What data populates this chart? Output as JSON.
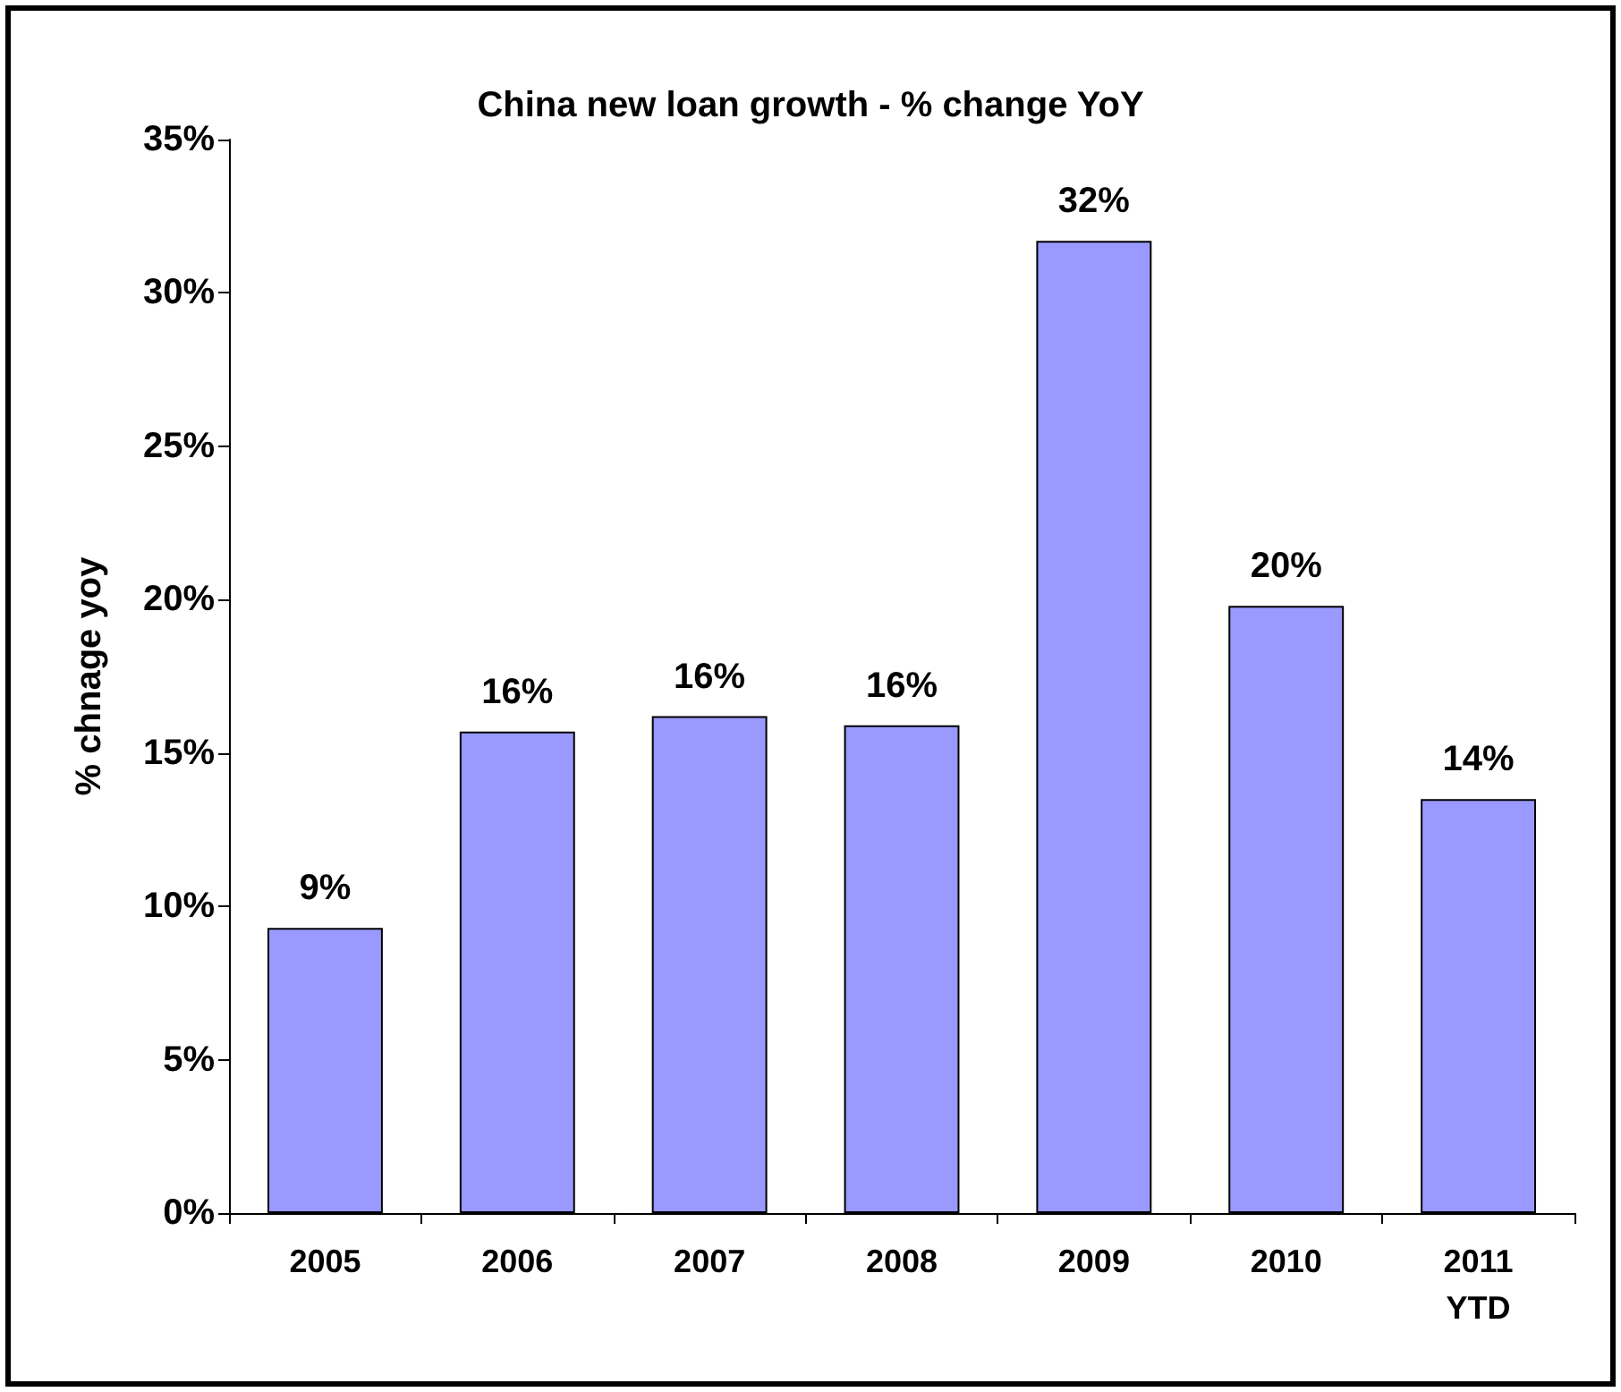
{
  "chart_data": {
    "type": "bar",
    "title": "China new loan growth - % change YoY",
    "ylabel": "% chnage yoy",
    "categories": [
      "2005",
      "2006",
      "2007",
      "2008",
      "2009",
      "2010",
      "2011\nYTD"
    ],
    "values": [
      9.3,
      15.7,
      16.2,
      15.9,
      31.7,
      19.8,
      13.5
    ],
    "value_labels": [
      "9%",
      "16%",
      "16%",
      "16%",
      "32%",
      "20%",
      "14%"
    ],
    "color": "#9999ff",
    "ylim": [
      0,
      35
    ],
    "yticks": [
      {
        "value": 0,
        "label": "0%"
      },
      {
        "value": 5,
        "label": "5%"
      },
      {
        "value": 10,
        "label": "10%"
      },
      {
        "value": 15,
        "label": "15%"
      },
      {
        "value": 20,
        "label": "20%"
      },
      {
        "value": 25,
        "label": "25%"
      },
      {
        "value": 30,
        "label": "30%"
      },
      {
        "value": 35,
        "label": "35%"
      }
    ],
    "grid": false
  }
}
